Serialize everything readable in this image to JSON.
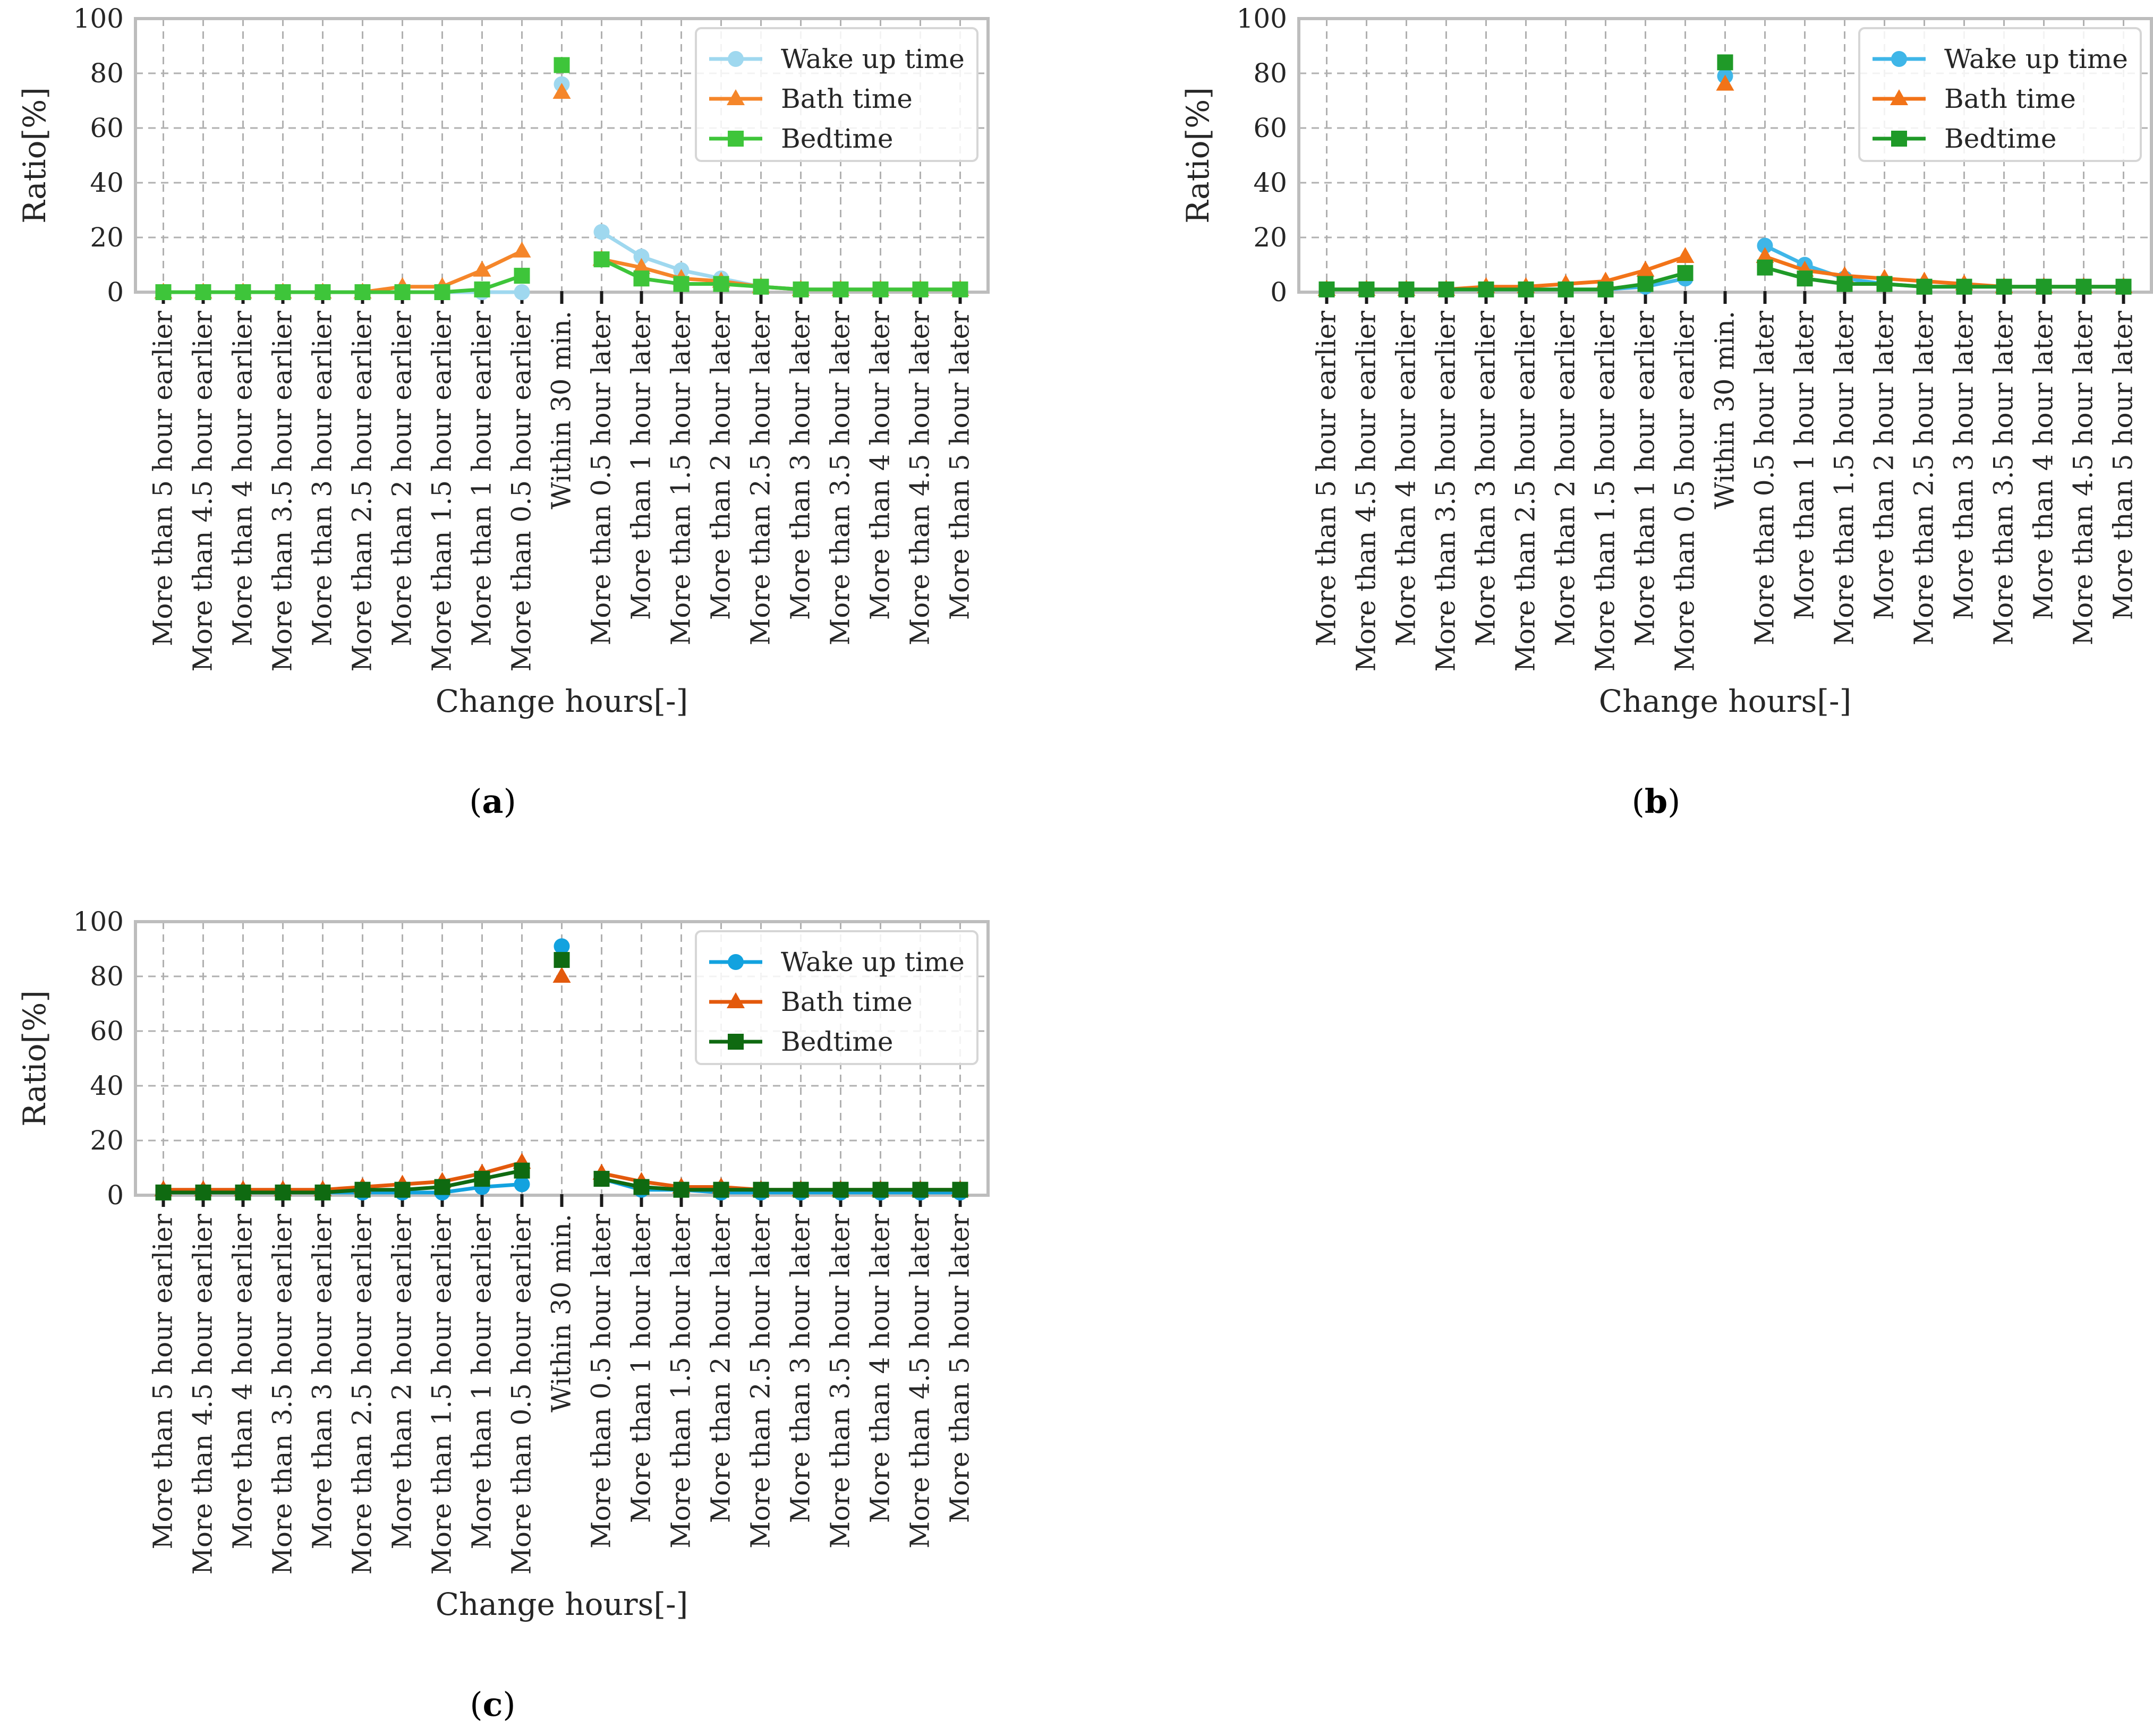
{
  "chart_data": [
    {
      "type": "line",
      "caption": "a",
      "xlabel": "Change hours[-]",
      "ylabel": "Ratio[%]",
      "ylim": [
        0,
        100
      ],
      "yticks": [
        "0",
        "20",
        "40",
        "60",
        "80",
        "100"
      ],
      "grid": true,
      "legend_position": "top-right",
      "categories": [
        "More than 5 hour earlier",
        "More than 4.5 hour earlier",
        "More than 4 hour earlier",
        "More than 3.5 hour earlier",
        "More than 3 hour earlier",
        "More than 2.5 hour earlier",
        "More than 2 hour earlier",
        "More than 1.5 hour earlier",
        "More than 1 hour earlier",
        "More than 0.5 hour earlier",
        "Within 30 min.",
        "More than 0.5 hour later",
        "More than 1 hour later",
        "More than 1.5 hour later",
        "More than 2 hour later",
        "More than 2.5 hour later",
        "More than 3 hour later",
        "More than 3.5 hour later",
        "More than 4 hour later",
        "More than 4.5 hour later",
        "More than 5 hour later"
      ],
      "series": [
        {
          "name": "Wake up time",
          "color": "#9fd8ef",
          "marker": "circle",
          "values": [
            0,
            0,
            0,
            0,
            0,
            0,
            0,
            0,
            0,
            0,
            76,
            22,
            13,
            8,
            5,
            2,
            1,
            1,
            1,
            1,
            1
          ]
        },
        {
          "name": "Bath time",
          "color": "#f5862a",
          "marker": "triangle",
          "values": [
            0,
            0,
            0,
            0,
            0,
            0,
            2,
            2,
            8,
            15,
            73,
            12,
            9,
            5,
            4,
            2,
            1,
            1,
            1,
            1,
            1
          ]
        },
        {
          "name": "Bedtime",
          "color": "#3ec53a",
          "marker": "square",
          "values": [
            0,
            0,
            0,
            0,
            0,
            0,
            0,
            0,
            1,
            6,
            83,
            12,
            5,
            3,
            3,
            2,
            1,
            1,
            1,
            1,
            1
          ]
        }
      ]
    },
    {
      "type": "line",
      "caption": "b",
      "xlabel": "Change hours[-]",
      "ylabel": "Ratio[%]",
      "ylim": [
        0,
        100
      ],
      "yticks": [
        "0",
        "20",
        "40",
        "60",
        "80",
        "100"
      ],
      "grid": true,
      "legend_position": "top-right",
      "categories": [
        "More than 5 hour earlier",
        "More than 4.5 hour earlier",
        "More than 4 hour earlier",
        "More than 3.5 hour earlier",
        "More than 3 hour earlier",
        "More than 2.5 hour earlier",
        "More than 2 hour earlier",
        "More than 1.5 hour earlier",
        "More than 1 hour earlier",
        "More than 0.5 hour earlier",
        "Within 30 min.",
        "More than 0.5 hour later",
        "More than 1 hour later",
        "More than 1.5 hour later",
        "More than 2 hour later",
        "More than 2.5 hour later",
        "More than 3 hour later",
        "More than 3.5 hour later",
        "More than 4 hour later",
        "More than 4.5 hour later",
        "More than 5 hour later"
      ],
      "series": [
        {
          "name": "Wake up time",
          "color": "#3fb6e8",
          "marker": "circle",
          "values": [
            1,
            1,
            1,
            1,
            1,
            1,
            1,
            1,
            2,
            5,
            79,
            17,
            10,
            5,
            3,
            2,
            2,
            2,
            2,
            2,
            2
          ]
        },
        {
          "name": "Bath time",
          "color": "#f27318",
          "marker": "triangle",
          "values": [
            1,
            1,
            1,
            1,
            2,
            2,
            3,
            4,
            8,
            13,
            76,
            13,
            8,
            6,
            5,
            4,
            3,
            2,
            2,
            2,
            2
          ]
        },
        {
          "name": "Bedtime",
          "color": "#1f9a28",
          "marker": "square",
          "values": [
            1,
            1,
            1,
            1,
            1,
            1,
            1,
            1,
            3,
            7,
            84,
            9,
            5,
            3,
            3,
            2,
            2,
            2,
            2,
            2,
            2
          ]
        }
      ]
    },
    {
      "type": "line",
      "caption": "c",
      "xlabel": "Change hours[-]",
      "ylabel": "Ratio[%]",
      "ylim": [
        0,
        100
      ],
      "yticks": [
        "0",
        "20",
        "40",
        "60",
        "80",
        "100"
      ],
      "grid": true,
      "legend_position": "top-right",
      "categories": [
        "More than 5 hour earlier",
        "More than 4.5 hour earlier",
        "More than 4 hour earlier",
        "More than 3.5 hour earlier",
        "More than 3 hour earlier",
        "More than 2.5 hour earlier",
        "More than 2 hour earlier",
        "More than 1.5 hour earlier",
        "More than 1 hour earlier",
        "More than 0.5 hour earlier",
        "Within 30 min.",
        "More than 0.5 hour later",
        "More than 1 hour later",
        "More than 1.5 hour later",
        "More than 2 hour later",
        "More than 2.5 hour later",
        "More than 3 hour later",
        "More than 3.5 hour later",
        "More than 4 hour later",
        "More than 4.5 hour later",
        "More than 5 hour later"
      ],
      "series": [
        {
          "name": "Wake up time",
          "color": "#12a2df",
          "marker": "circle",
          "values": [
            1,
            1,
            1,
            1,
            1,
            1,
            1,
            1,
            3,
            4,
            91,
            6,
            2,
            2,
            1,
            1,
            1,
            1,
            1,
            1,
            1
          ]
        },
        {
          "name": "Bath time",
          "color": "#e3590c",
          "marker": "triangle",
          "values": [
            2,
            2,
            2,
            2,
            2,
            3,
            4,
            5,
            8,
            12,
            80,
            8,
            5,
            3,
            3,
            2,
            2,
            2,
            2,
            2,
            2
          ]
        },
        {
          "name": "Bedtime",
          "color": "#0f6a11",
          "marker": "square",
          "values": [
            1,
            1,
            1,
            1,
            1,
            2,
            2,
            3,
            6,
            9,
            86,
            6,
            3,
            2,
            2,
            2,
            2,
            2,
            2,
            2,
            2
          ]
        }
      ]
    }
  ]
}
